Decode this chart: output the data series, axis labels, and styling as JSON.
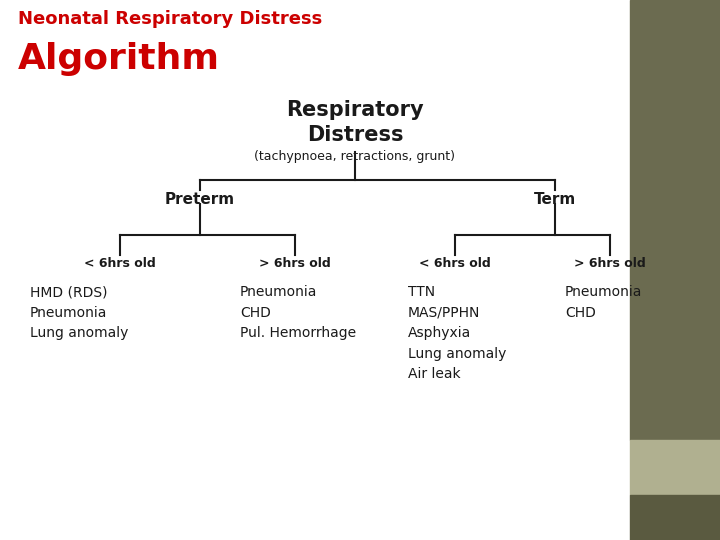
{
  "bg_color": "#ffffff",
  "right_panel_color": "#6b6b50",
  "right_panel_light_color": "#b0b090",
  "right_panel_bottom_color": "#5a5a40",
  "title_line1": "Neonatal Respiratory Distress",
  "title_line2": "Algorithm",
  "title_color": "#cc0000",
  "root_label_line1": "Respiratory",
  "root_label_line2": "Distress",
  "root_sub": "(tachypnoea, retractions, grunt)",
  "branch1_label": "Preterm",
  "branch2_label": "Term",
  "leaf1_label": "< 6hrs old",
  "leaf2_label": "> 6hrs old",
  "leaf3_label": "< 6hrs old",
  "leaf4_label": "> 6hrs old",
  "content1": "HMD (RDS)\nPneumonia\nLung anomaly",
  "content2": "Pneumonia\nCHD\nPul. Hemorrhage",
  "content3": "TTN\nMAS/PPHN\nAsphyxia\nLung anomaly\nAir leak",
  "content4": "Pneumonia\nCHD",
  "text_color": "#1a1a1a",
  "line_color": "#1a1a1a",
  "title1_fontsize": 13,
  "title2_fontsize": 26,
  "root_fontsize": 15,
  "sub_fontsize": 9,
  "branch_fontsize": 11,
  "leaf_fontsize": 9,
  "content_fontsize": 10
}
